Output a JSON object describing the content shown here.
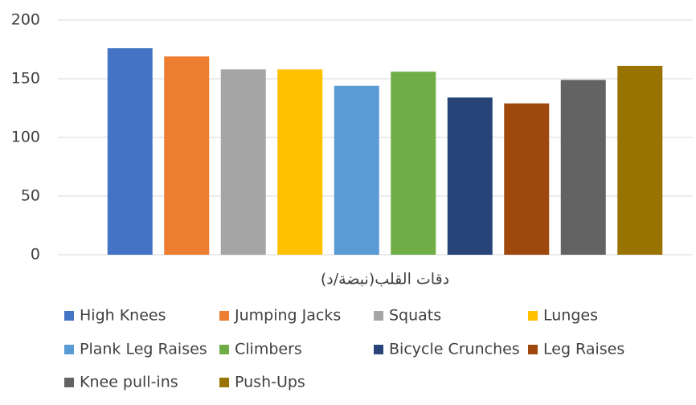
{
  "chart_data": {
    "type": "bar",
    "categories": [
      "دقات القلب(نبضة/د)"
    ],
    "series": [
      {
        "name": "High Knees",
        "color": "#4472c4",
        "values": [
          176
        ]
      },
      {
        "name": "Jumping Jacks",
        "color": "#ed7d31",
        "values": [
          169
        ]
      },
      {
        "name": "Squats",
        "color": "#a5a5a5",
        "values": [
          158
        ]
      },
      {
        "name": "Lunges",
        "color": "#ffc000",
        "values": [
          158
        ]
      },
      {
        "name": "Plank Leg Raises",
        "color": "#5b9bd5",
        "values": [
          144
        ]
      },
      {
        "name": "Climbers",
        "color": "#70ad47",
        "values": [
          156
        ]
      },
      {
        "name": "Bicycle Crunches",
        "color": "#264478",
        "values": [
          134
        ]
      },
      {
        "name": "Leg Raises",
        "color": "#9e480e",
        "values": [
          129
        ]
      },
      {
        "name": "Knee pull-ins",
        "color": "#636363",
        "values": [
          149
        ]
      },
      {
        "name": "Push-Ups",
        "color": "#997300",
        "values": [
          161
        ]
      }
    ],
    "ylim": [
      0,
      200
    ],
    "yticks": [
      0,
      50,
      100,
      150,
      200
    ],
    "grid": true,
    "legend": "bottom"
  }
}
